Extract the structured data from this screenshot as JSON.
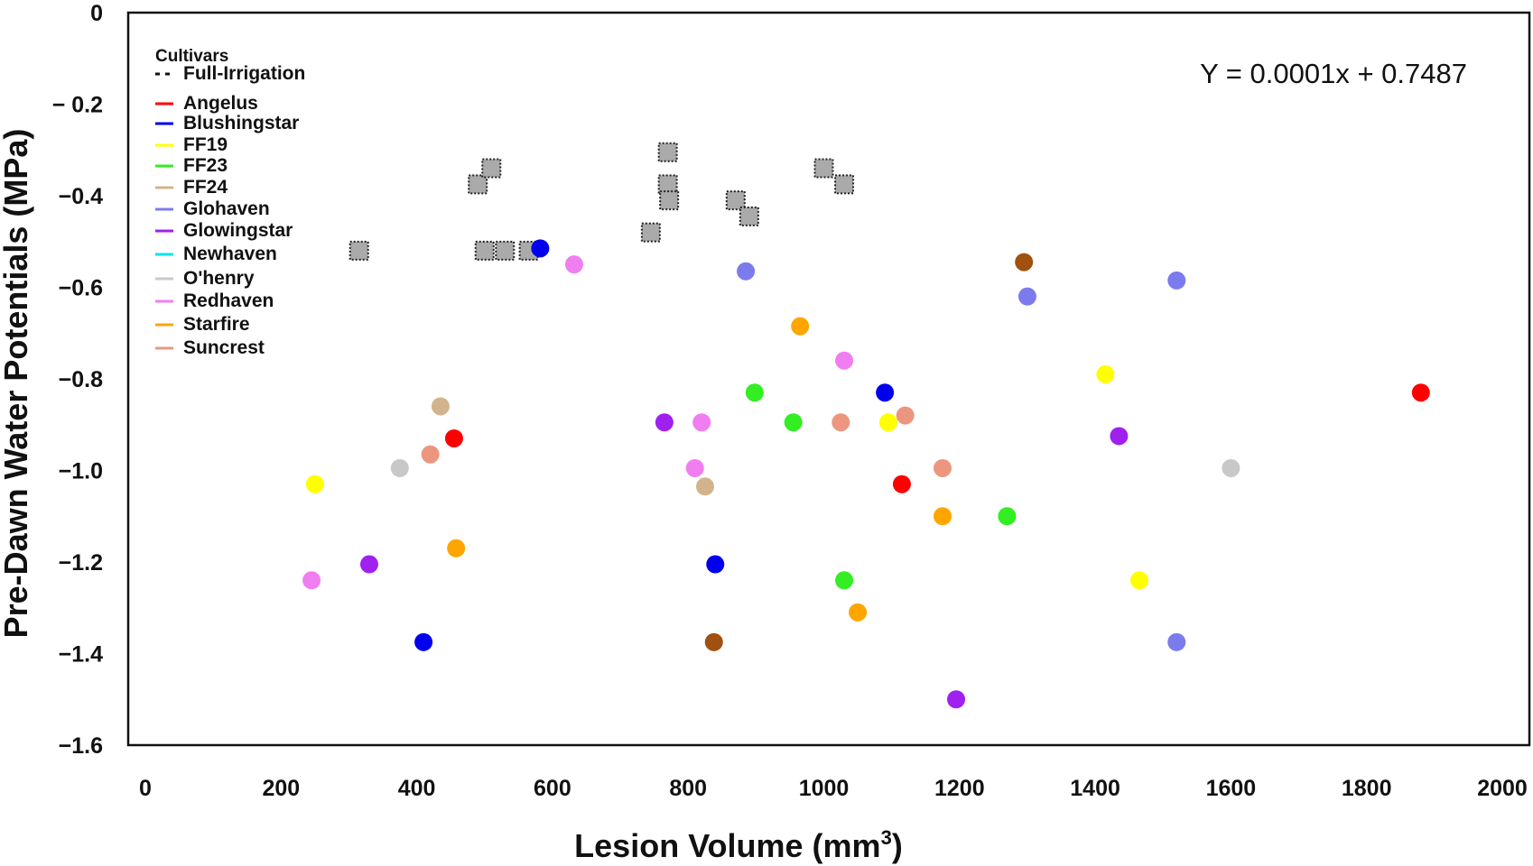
{
  "chart_data": {
    "type": "scatter",
    "title": "",
    "xlabel": "Lesion Volume (mm",
    "xlabel_sup": "3",
    "xlabel_end": ")",
    "ylabel": "Pre-Dawn Water Potentials (MPa)",
    "xlim": [
      0,
      2000
    ],
    "ylim": [
      -1.6,
      0
    ],
    "x_ticks": [
      0,
      200,
      400,
      600,
      800,
      1000,
      1200,
      1400,
      1600,
      1800,
      2000
    ],
    "x_tick_labels": [
      "0",
      "200",
      "400",
      "600",
      "800",
      "1000",
      "1200",
      "1400",
      "1600",
      "1800",
      "2000"
    ],
    "y_ticks": [
      0,
      -0.2,
      -0.4,
      -0.6,
      -0.8,
      -1.0,
      -1.2,
      -1.4,
      -1.6
    ],
    "y_tick_labels": [
      "0",
      "− 0.2",
      "−0.4",
      "−0.6",
      "−0.8",
      "−1.0",
      "−1.2",
      "−1.4",
      "−1.6"
    ],
    "grid": false,
    "legend_position": "top-left",
    "legend_title": "Cultivars",
    "legend": [
      {
        "name": "Full-Irrigation",
        "color": "#111111",
        "style": "dashed"
      },
      {
        "name": "Angelus",
        "color": "#ff0000",
        "style": "solid"
      },
      {
        "name": "Blushingstar",
        "color": "#0000ee",
        "style": "solid"
      },
      {
        "name": "FF19",
        "color": "#ffff00",
        "style": "solid"
      },
      {
        "name": "FF23",
        "color": "#33ee22",
        "style": "solid"
      },
      {
        "name": "FF24",
        "color": "#d2b48c",
        "style": "solid"
      },
      {
        "name": "Glohaven",
        "color": "#7b7bee",
        "style": "solid"
      },
      {
        "name": "Glowingstar",
        "color": "#a020f0",
        "style": "solid"
      },
      {
        "name": "Newhaven",
        "color": "#00e5ee",
        "style": "solid"
      },
      {
        "name": "O'henry",
        "color": "#c8c8c8",
        "style": "solid"
      },
      {
        "name": "Redhaven",
        "color": "#f07ef0",
        "style": "solid"
      },
      {
        "name": "Starfire",
        "color": "#ffa500",
        "style": "solid"
      },
      {
        "name": "Suncrest",
        "color": "#ec9680",
        "style": "solid"
      }
    ],
    "equation": "Y = 0.0001x + 0.7487",
    "full_irrigation_color": "#aaaaaa",
    "full_irrigation": [
      {
        "x": 315,
        "y": -0.52
      },
      {
        "x": 490,
        "y": -0.375
      },
      {
        "x": 510,
        "y": -0.34
      },
      {
        "x": 500,
        "y": -0.52
      },
      {
        "x": 530,
        "y": -0.52
      },
      {
        "x": 565,
        "y": -0.52
      },
      {
        "x": 745,
        "y": -0.48
      },
      {
        "x": 770,
        "y": -0.305
      },
      {
        "x": 770,
        "y": -0.375
      },
      {
        "x": 772,
        "y": -0.41
      },
      {
        "x": 870,
        "y": -0.41
      },
      {
        "x": 890,
        "y": -0.445
      },
      {
        "x": 1000,
        "y": -0.34
      },
      {
        "x": 1030,
        "y": -0.375
      }
    ],
    "series": [
      {
        "name": "Angelus",
        "color": "#ff0000",
        "points": [
          {
            "x": 455,
            "y": -0.93
          },
          {
            "x": 1115,
            "y": -1.03
          },
          {
            "x": 1880,
            "y": -0.83
          }
        ]
      },
      {
        "name": "Blushingstar",
        "color": "#0000ee",
        "points": [
          {
            "x": 582,
            "y": -0.515
          },
          {
            "x": 1090,
            "y": -0.83
          },
          {
            "x": 840,
            "y": -1.205
          },
          {
            "x": 410,
            "y": -1.375
          }
        ]
      },
      {
        "name": "FF19",
        "color": "#ffff00",
        "points": [
          {
            "x": 250,
            "y": -1.03
          },
          {
            "x": 1095,
            "y": -0.895
          },
          {
            "x": 1415,
            "y": -0.79
          },
          {
            "x": 1465,
            "y": -1.24
          }
        ]
      },
      {
        "name": "FF23",
        "color": "#33ee22",
        "points": [
          {
            "x": 898,
            "y": -0.83
          },
          {
            "x": 955,
            "y": -0.895
          },
          {
            "x": 1030,
            "y": -1.24
          },
          {
            "x": 1270,
            "y": -1.1
          }
        ]
      },
      {
        "name": "FF24",
        "color": "#d2b48c",
        "points": [
          {
            "x": 435,
            "y": -0.86
          },
          {
            "x": 825,
            "y": -1.035
          }
        ]
      },
      {
        "name": "Glohaven",
        "color": "#7b7bee",
        "points": [
          {
            "x": 885,
            "y": -0.565
          },
          {
            "x": 1300,
            "y": -0.62
          },
          {
            "x": 1520,
            "y": -0.585
          },
          {
            "x": 1520,
            "y": -1.375
          }
        ]
      },
      {
        "name": "Glowingstar",
        "color": "#a020f0",
        "points": [
          {
            "x": 330,
            "y": -1.205
          },
          {
            "x": 765,
            "y": -0.895
          },
          {
            "x": 1435,
            "y": -0.925
          },
          {
            "x": 1195,
            "y": -1.5
          }
        ]
      },
      {
        "name": "O'henry",
        "color": "#c8c8c8",
        "points": [
          {
            "x": 375,
            "y": -0.995
          },
          {
            "x": 1600,
            "y": -0.995
          }
        ]
      },
      {
        "name": "Redhaven",
        "color": "#f07ef0",
        "points": [
          {
            "x": 245,
            "y": -1.24
          },
          {
            "x": 632,
            "y": -0.55
          },
          {
            "x": 820,
            "y": -0.895
          },
          {
            "x": 810,
            "y": -0.995
          },
          {
            "x": 1030,
            "y": -0.76
          }
        ]
      },
      {
        "name": "Starfire",
        "color": "#ffa500",
        "points": [
          {
            "x": 458,
            "y": -1.17
          },
          {
            "x": 965,
            "y": -0.685
          },
          {
            "x": 1050,
            "y": -1.31
          },
          {
            "x": 1175,
            "y": -1.1
          }
        ]
      },
      {
        "name": "Suncrest",
        "color": "#ec9680",
        "points": [
          {
            "x": 420,
            "y": -0.965
          },
          {
            "x": 1025,
            "y": -0.895
          },
          {
            "x": 1120,
            "y": -0.88
          },
          {
            "x": 1175,
            "y": -0.995
          }
        ]
      },
      {
        "name": "Unlabeled",
        "color": "#a0500f",
        "points": [
          {
            "x": 1295,
            "y": -0.545
          },
          {
            "x": 838,
            "y": -1.375
          }
        ]
      }
    ]
  }
}
